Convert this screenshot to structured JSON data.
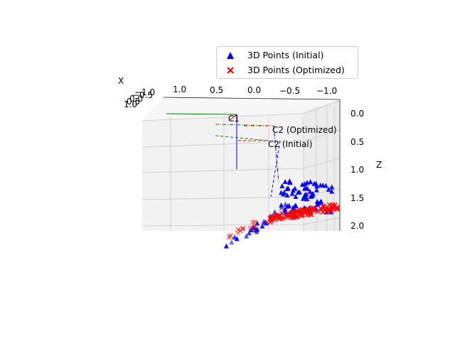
{
  "chart_data": {
    "type": "scatter",
    "subtype": "3d",
    "axes": {
      "x": {
        "label": "X",
        "ticks": [
          "1.0",
          "0.5",
          "0.0",
          "−0.5",
          "−1.0"
        ]
      },
      "y": {
        "label": "",
        "ticks": [
          "−1.0",
          "−0.5",
          "0.0",
          "0.5",
          "1.0"
        ]
      },
      "z": {
        "label": "Z",
        "ticks": [
          "0.0",
          "0.5",
          "1.0",
          "1.5",
          "2.0"
        ],
        "inverted": true
      }
    },
    "grid": true,
    "legend": {
      "placement": "top-right",
      "entries": [
        {
          "name": "3D Points (Initial)",
          "marker": "triangle",
          "color": "#0000ff"
        },
        {
          "name": "3D Points (Optimized)",
          "marker": "x",
          "color": "#ff0000"
        }
      ]
    },
    "cameras": [
      {
        "label": "C1",
        "color": "#000000"
      },
      {
        "label": "C2 (Optimized)",
        "color": "#000000"
      },
      {
        "label": "C2 (Initial)",
        "color": "#000000"
      }
    ],
    "colors": {
      "initial": "#0000ff",
      "optimized": "#ff0000",
      "axis_x": "#ff0000",
      "axis_y": "#008000",
      "axis_z": "#0000ff",
      "pane": "#f2f2f2",
      "grid": "#c8c8c8"
    }
  },
  "legend": {
    "initial": "3D Points (Initial)",
    "optimized": "3D Points (Optimized)"
  }
}
